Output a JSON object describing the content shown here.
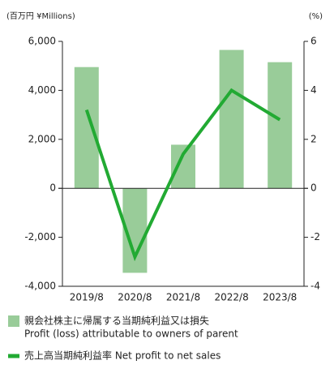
{
  "chart_data": {
    "type": "bar",
    "y_label": "(百万円 ¥Millions)",
    "y2_label": "(%)",
    "categories": [
      "2019/8",
      "2020/8",
      "2021/8",
      "2022/8",
      "2023/8"
    ],
    "series": [
      {
        "name": [
          "親会社株主に帰属する当期純利益又は損失",
          "Profit (loss) attributable to owners of parent"
        ],
        "color": "#99cc99",
        "values": [
          4950,
          -3450,
          1780,
          5650,
          5150
        ]
      },
      {
        "name": "売上高当期純利益率 Net profit to net sales",
        "color": "#22aa33",
        "type": "line",
        "axis": "y2",
        "values": [
          3.2,
          -2.8,
          1.4,
          4.0,
          2.8
        ]
      }
    ],
    "ylim": [
      -4000,
      6000
    ],
    "yticks": [
      {
        "value": -4000,
        "label": "-4,000"
      },
      {
        "value": -2000,
        "label": "-2,000"
      },
      0,
      {
        "value": 2000,
        "label": "2,000"
      },
      {
        "value": 4000,
        "label": "4,000"
      },
      {
        "value": 6000,
        "label": "6,000"
      }
    ],
    "y2lim": [
      -4,
      6
    ],
    "y2ticks": [
      -4,
      -2,
      0,
      2,
      4,
      6
    ]
  }
}
